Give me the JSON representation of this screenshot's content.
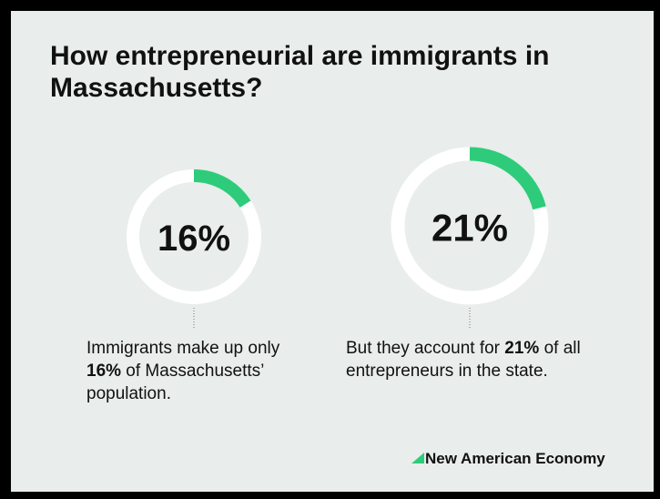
{
  "title": "How entrepreneurial are immigrants in Massachusetts?",
  "chart_data": [
    {
      "type": "donut",
      "values": [
        16
      ],
      "value_labels": [
        "16%"
      ],
      "color": "#2ecc7a",
      "caption": [
        "Immigrants make up only ",
        "16%",
        " of Massachusetts’ population."
      ]
    },
    {
      "type": "donut",
      "values": [
        21
      ],
      "value_labels": [
        "21%"
      ],
      "color": "#2ecc7a",
      "caption": [
        "But they account for ",
        "21%",
        " of all entrepreneurs in the state."
      ]
    }
  ],
  "footer": {
    "logo": "New American Economy"
  }
}
